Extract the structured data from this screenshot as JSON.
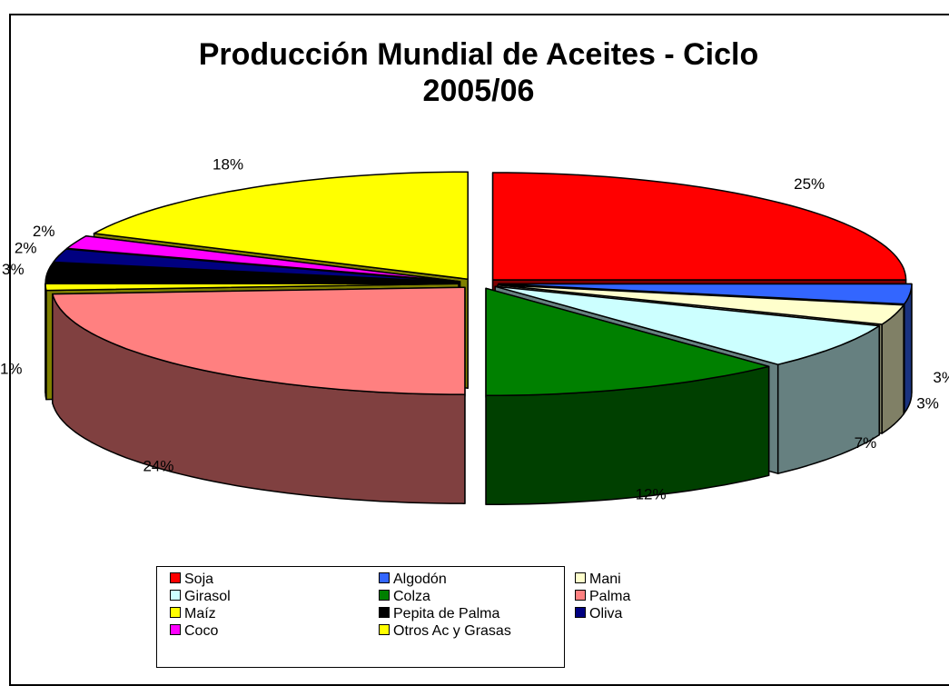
{
  "chart_data": {
    "type": "pie",
    "title": "Producción Mundial de Aceites - Ciclo 2005/06",
    "categories": [
      "Soja",
      "Algodón",
      "Mani",
      "Girasol",
      "Colza",
      "Palma",
      "Maíz",
      "Pepita de Palma",
      "Oliva",
      "Coco",
      "Otros Ac y Grasas"
    ],
    "values": [
      25,
      3,
      3,
      7,
      12,
      24,
      1,
      3,
      2,
      2,
      18
    ],
    "value_labels": [
      "25%",
      "3%",
      "3%",
      "7%",
      "12%",
      "24%",
      "1%",
      "3%",
      "2%",
      "2%",
      "18%"
    ],
    "colors": [
      "#ff0000",
      "#3366ff",
      "#ffffcc",
      "#ccffff",
      "#008000",
      "#ff8080",
      "#ffff00",
      "#000000",
      "#000080",
      "#ff00ff",
      "#ffff00"
    ],
    "legend": "bottom"
  }
}
